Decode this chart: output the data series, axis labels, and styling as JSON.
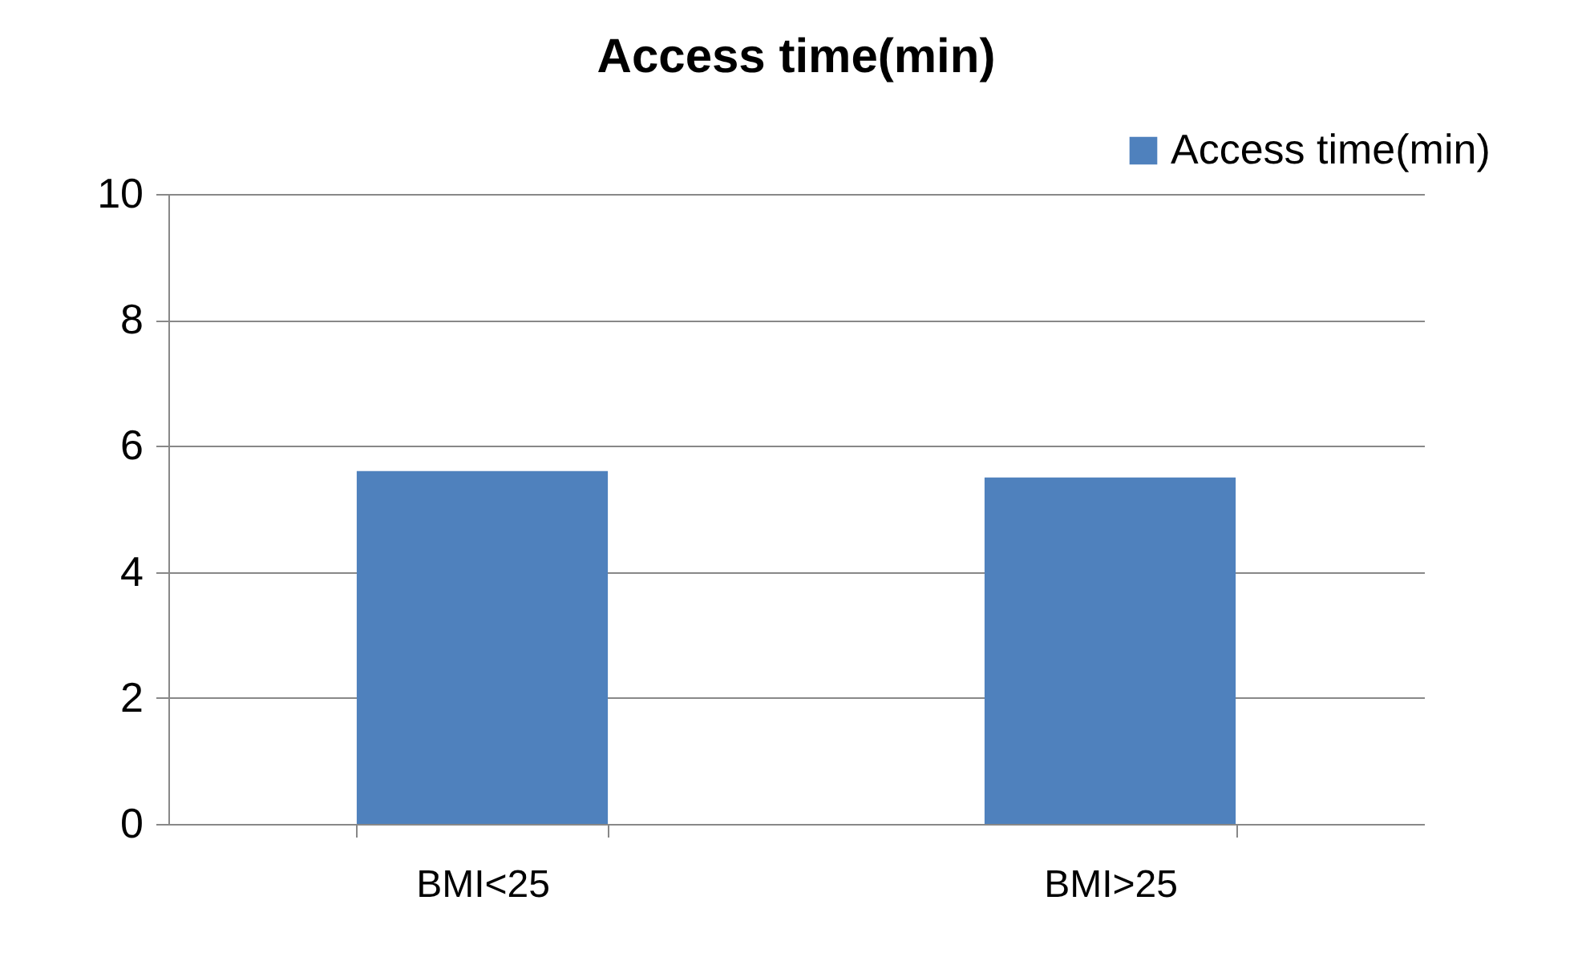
{
  "chart_data": {
    "type": "bar",
    "title": "Access time(min)",
    "categories": [
      "BMI<25",
      "BMI>25"
    ],
    "series": [
      {
        "name": "Access time(min)",
        "color": "#4f81bd",
        "values": [
          5.6,
          5.5
        ]
      }
    ],
    "ylim": [
      0,
      10
    ],
    "yticks": [
      0,
      2,
      4,
      6,
      8,
      10
    ],
    "grid": "y",
    "legend": "top right"
  }
}
